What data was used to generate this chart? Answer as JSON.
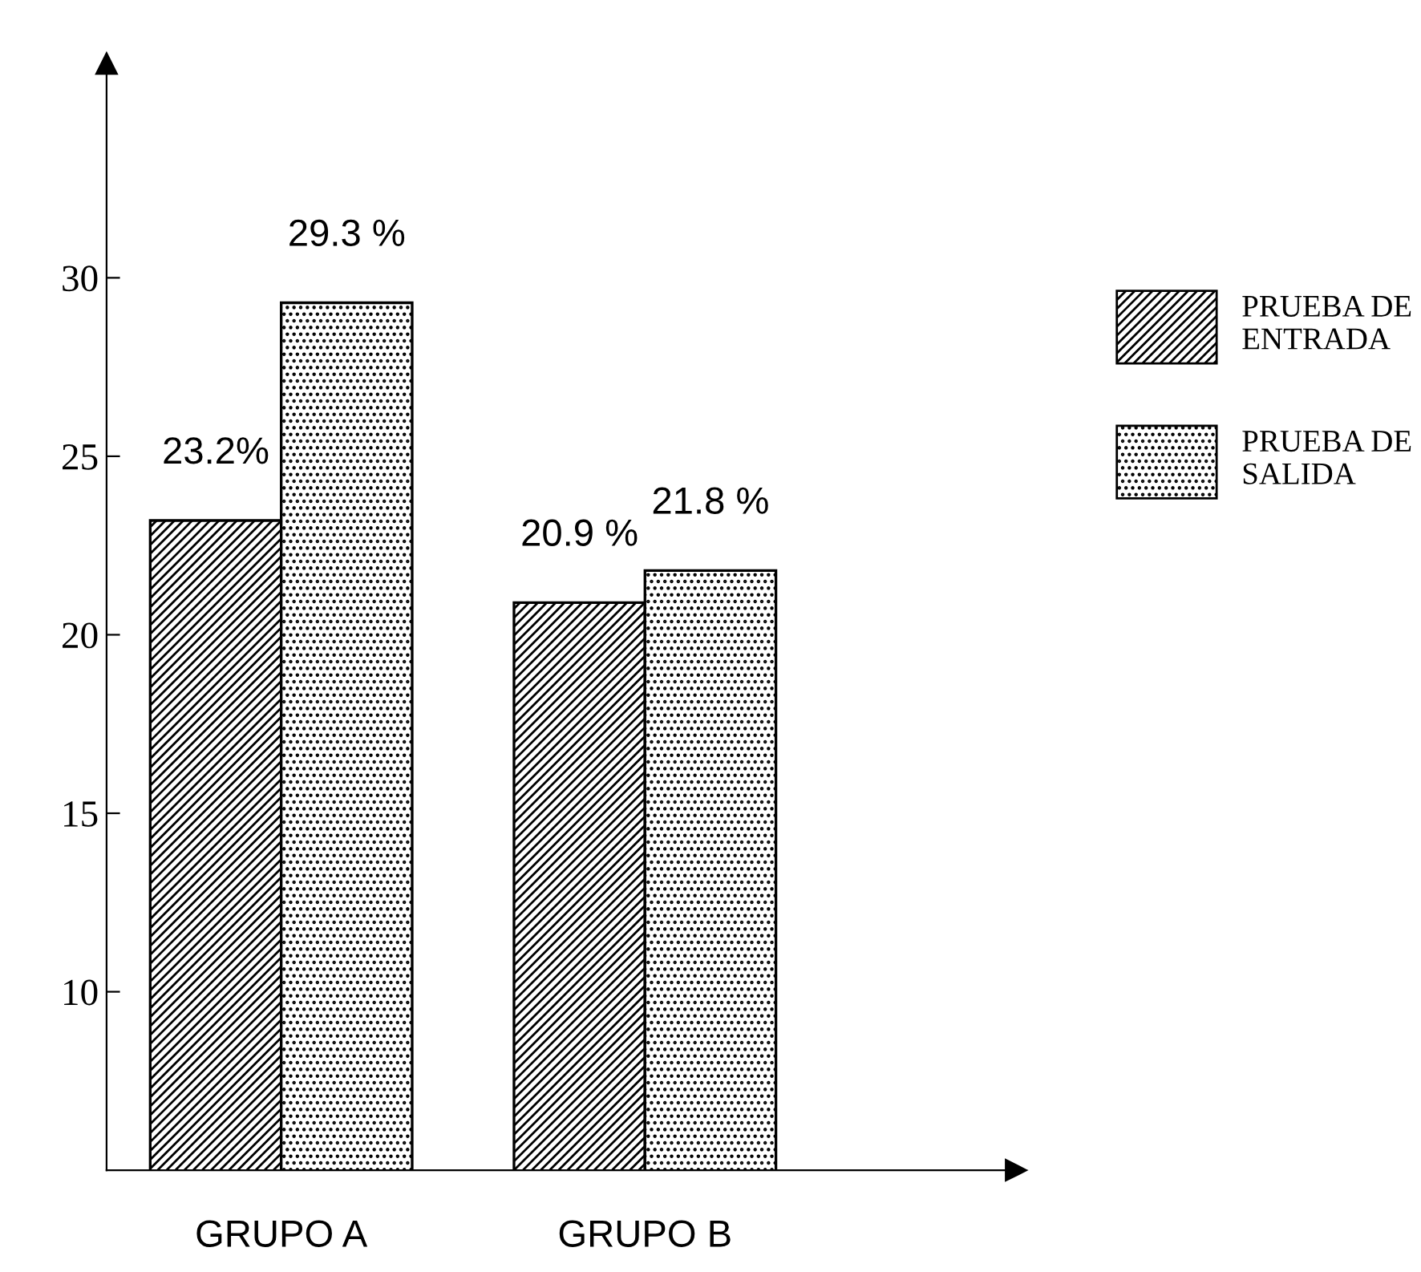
{
  "chart_data": {
    "type": "bar",
    "categories": [
      "GRUPO A",
      "GRUPO B"
    ],
    "series": [
      {
        "name": "PRUEBA DE\nENTRADA",
        "color": "#000000",
        "values": [
          23.2,
          20.9
        ],
        "value_labels": [
          "23.2%",
          "20.9 %"
        ]
      },
      {
        "name": "PRUEBA DE\nSALIDA",
        "color": "#000000",
        "values": [
          29.3,
          21.8
        ],
        "value_labels": [
          "29.3 %",
          "21.8 %"
        ]
      }
    ],
    "ylim": [
      5,
      36
    ],
    "yticks": [
      10,
      15,
      20,
      25,
      30
    ],
    "grid": false,
    "legend": "right"
  }
}
